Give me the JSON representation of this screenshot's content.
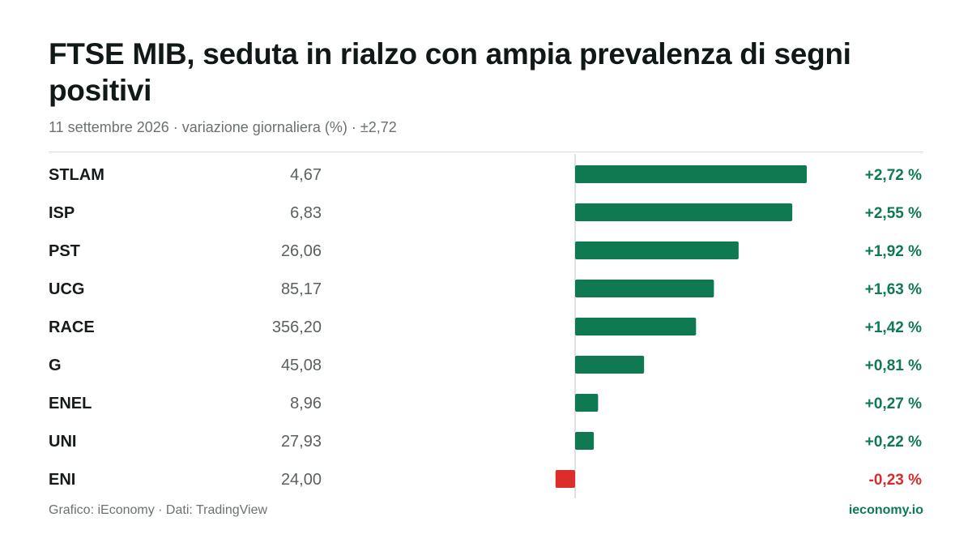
{
  "title": "FTSE MIB, seduta in rialzo con ampia prevalenza di segni positivi",
  "subtitle": "11 settembre 2026 · variazione giornaliera (%) · ±2,72",
  "footer": {
    "source": "Grafico: iEconomy · Dati: TradingView",
    "brand": "ieconomy.io"
  },
  "colors": {
    "positive": "#0f7a52",
    "negative": "#dc2c2c",
    "positive_text": "#0f7a52",
    "negative_text": "#d92b2b",
    "axis": "#d6d9d9"
  },
  "chart_data": {
    "type": "bar",
    "orientation": "horizontal",
    "xlim": [
      -2.72,
      2.72
    ],
    "categories": [
      "STLAM",
      "ISP",
      "PST",
      "UCG",
      "RACE",
      "G",
      "ENEL",
      "UNI",
      "ENI"
    ],
    "prices": [
      "4,67",
      "6,83",
      "26,06",
      "85,17",
      "356,20",
      "45,08",
      "8,96",
      "27,93",
      "24,00"
    ],
    "values": [
      2.72,
      2.55,
      1.92,
      1.63,
      1.42,
      0.81,
      0.27,
      0.22,
      -0.23
    ],
    "value_labels": [
      "+2,72 %",
      "+2,55 %",
      "+1,92 %",
      "+1,63 %",
      "+1,42 %",
      "+0,81 %",
      "+0,27 %",
      "+0,22 %",
      "-0,23 %"
    ]
  }
}
